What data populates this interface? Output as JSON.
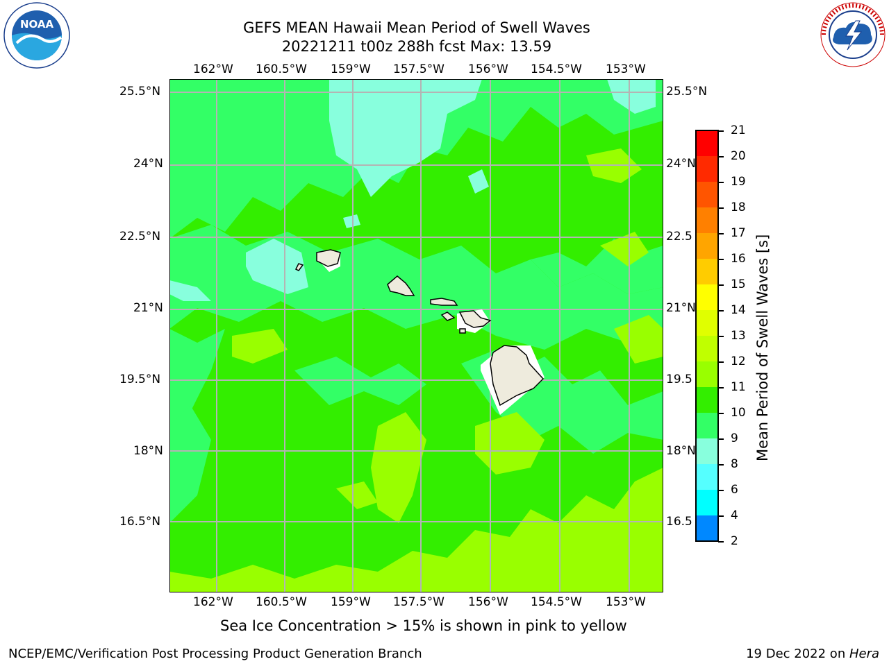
{
  "header": {
    "title_line1": "GEFS MEAN Hawaii Mean Period of Swell Waves",
    "title_line2": "20221211 t00z 288h fcst   Max: 13.59"
  },
  "logos": {
    "left": "noara-logo",
    "left_text": "NOAA",
    "left_ring_text": "NATIONAL OCEANIC AND ATMOSPHERIC ADMINISTRATION · U.S. DEPARTMENT OF COMMERCE",
    "right": "nws-logo",
    "right_ring_text": "NATIONAL WEATHER SERVICE"
  },
  "map": {
    "lon_labels": [
      "162°W",
      "160.5°W",
      "159°W",
      "157.5°W",
      "156°W",
      "154.5°W",
      "153°W"
    ],
    "lat_labels": [
      "25.5°N",
      "24°N",
      "22.5°N",
      "21°N",
      "19.5°N",
      "18°N",
      "16.5°N"
    ],
    "lat_labels_right": [
      "25.5°N",
      "24°N",
      "22.5",
      "21°N",
      "19.5",
      "18°N",
      "16.5"
    ],
    "ocean_color": "#33ff33",
    "land_color": "#eeebdd"
  },
  "colorbar": {
    "title": "Mean Period of Swell Waves [s]",
    "ticks": [
      "21",
      "20",
      "19",
      "18",
      "17",
      "16",
      "15",
      "14",
      "13",
      "12",
      "11",
      "10",
      "9",
      "8",
      "6",
      "4",
      "2"
    ],
    "colors": [
      "#ff0000",
      "#ff2a00",
      "#ff5500",
      "#ff8000",
      "#ffa500",
      "#ffcc00",
      "#ffff00",
      "#e0ff00",
      "#c0ff00",
      "#99ff00",
      "#33ee00",
      "#33ff66",
      "#88ffdd",
      "#55ffff",
      "#00ffff",
      "#0088ff",
      "#0000ff"
    ]
  },
  "footer": {
    "note": "Sea Ice Concentration > 15% is shown in pink to yellow",
    "credit_left": "NCEP/EMC/Verification Post Processing Product Generation Branch",
    "date": "19 Dec 2022 on ",
    "machine": "Hera"
  }
}
